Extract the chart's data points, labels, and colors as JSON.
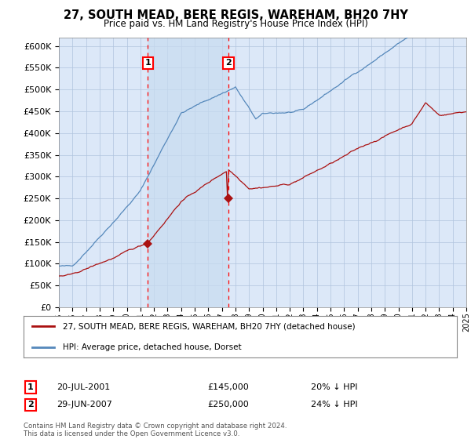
{
  "title": "27, SOUTH MEAD, BERE REGIS, WAREHAM, BH20 7HY",
  "subtitle": "Price paid vs. HM Land Registry's House Price Index (HPI)",
  "yticks": [
    0,
    50000,
    100000,
    150000,
    200000,
    250000,
    300000,
    350000,
    400000,
    450000,
    500000,
    550000,
    600000
  ],
  "xlim_start": 1995,
  "xlim_end": 2025,
  "ylim_min": 0,
  "ylim_max": 620000,
  "background_color": "#ffffff",
  "plot_bg_color": "#dce8f8",
  "grid_color": "#b0c4de",
  "hpi_color": "#5588bb",
  "price_color": "#aa1111",
  "sale1_date": 2001.55,
  "sale1_price": 145000,
  "sale2_date": 2007.49,
  "sale2_price": 250000,
  "legend_label_price": "27, SOUTH MEAD, BERE REGIS, WAREHAM, BH20 7HY (detached house)",
  "legend_label_hpi": "HPI: Average price, detached house, Dorset",
  "footnote": "Contains HM Land Registry data © Crown copyright and database right 2024.\nThis data is licensed under the Open Government Licence v3.0."
}
